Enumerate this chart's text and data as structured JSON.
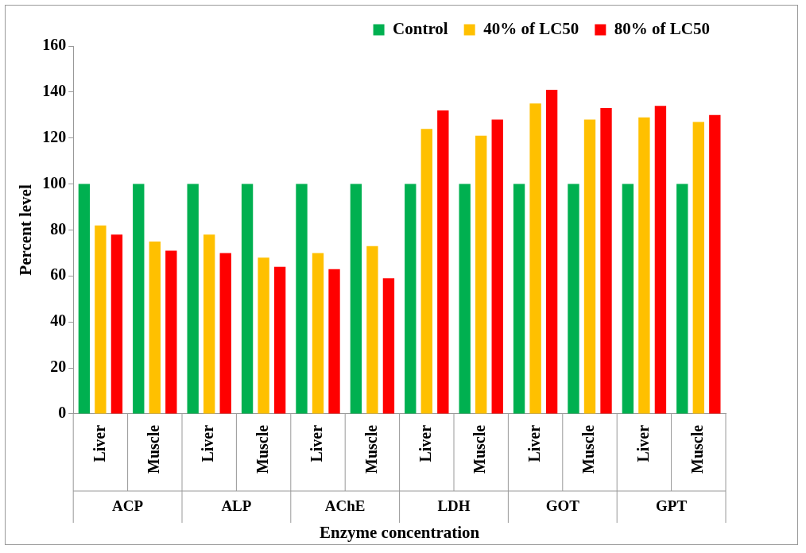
{
  "chart_data": {
    "type": "bar",
    "xlabel": "Enzyme concentration",
    "ylabel": "Percent level",
    "categories": [
      "Liver",
      "Muscle",
      "Liver",
      "Muscle",
      "Liver",
      "Muscle",
      "Liver",
      "Muscle",
      "Liver",
      "Muscle",
      "Liver",
      "Muscle"
    ],
    "annotations": [
      "ACP",
      "ALP",
      "AChE",
      "LDH",
      "GOT",
      "GPT"
    ],
    "series": [
      {
        "name": "Control",
        "color": "#00b050",
        "values": [
          100,
          100,
          100,
          100,
          100,
          100,
          100,
          100,
          100,
          100,
          100,
          100
        ]
      },
      {
        "name": "40% of LC50",
        "color": "#ffc000",
        "values": [
          82,
          75,
          78,
          68,
          70,
          73,
          124,
          121,
          135,
          128,
          129,
          127
        ]
      },
      {
        "name": "80% of LC50",
        "color": "#ff0000",
        "values": [
          78,
          71,
          70,
          64,
          63,
          59,
          132,
          128,
          141,
          133,
          134,
          130
        ]
      }
    ],
    "ylim": [
      0,
      160
    ],
    "yticks": [
      0,
      20,
      40,
      60,
      80,
      100,
      120,
      140,
      160
    ],
    "grid": false,
    "legend": "top right"
  }
}
